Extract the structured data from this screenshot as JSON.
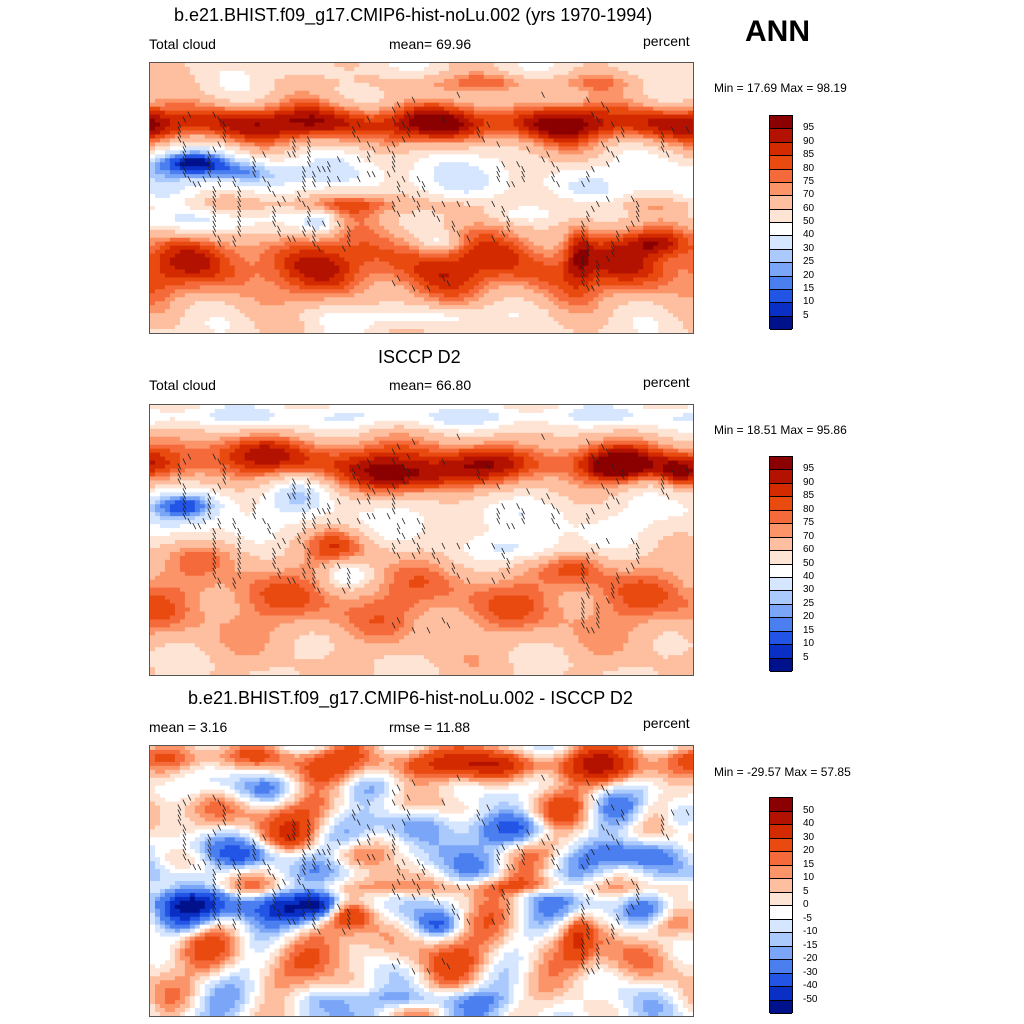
{
  "header": {
    "season": "ANN"
  },
  "panels": [
    {
      "title": "b.e21.BHIST.f09_g17.CMIP6-hist-noLu.002 (yrs 1970-1994)",
      "left_label": "Total cloud",
      "center_label": "mean=  69.96",
      "right_label": "percent",
      "minmax": "Min =  17.69 Max =  98.19",
      "colorbar_labels": [
        "95",
        "90",
        "85",
        "80",
        "75",
        "70",
        "60",
        "50",
        "40",
        "30",
        "25",
        "20",
        "15",
        "10",
        "5"
      ],
      "colorbar_colors": [
        "#8b0000",
        "#b41200",
        "#d42a00",
        "#e84a10",
        "#f56a3a",
        "#fb9468",
        "#fdbf9f",
        "#fde4d4",
        "#ffffff",
        "#d6e6ff",
        "#aac9fc",
        "#7ba6f7",
        "#4b7ff0",
        "#2255e6",
        "#0a2fc4",
        "#00118c"
      ],
      "map_field": "model"
    },
    {
      "title": "ISCCP D2",
      "left_label": "Total cloud",
      "center_label": "mean=  66.80",
      "right_label": "percent",
      "minmax": "Min =  18.51 Max =  95.86",
      "colorbar_labels": [
        "95",
        "90",
        "85",
        "80",
        "75",
        "70",
        "60",
        "50",
        "40",
        "30",
        "25",
        "20",
        "15",
        "10",
        "5"
      ],
      "colorbar_colors": [
        "#8b0000",
        "#b41200",
        "#d42a00",
        "#e84a10",
        "#f56a3a",
        "#fb9468",
        "#fdbf9f",
        "#fde4d4",
        "#ffffff",
        "#d6e6ff",
        "#aac9fc",
        "#7ba6f7",
        "#4b7ff0",
        "#2255e6",
        "#0a2fc4",
        "#00118c"
      ],
      "map_field": "obs"
    },
    {
      "title": "b.e21.BHIST.f09_g17.CMIP6-hist-noLu.002 - ISCCP D2",
      "left_label": "mean =   3.16",
      "center_label": "rmse =  11.88",
      "right_label": "percent",
      "minmax": "Min = -29.57 Max =  57.85",
      "colorbar_labels": [
        "50",
        "40",
        "30",
        "20",
        "15",
        "10",
        "5",
        "0",
        "-5",
        "-10",
        "-15",
        "-20",
        "-30",
        "-40",
        "-50"
      ],
      "colorbar_colors": [
        "#8b0000",
        "#b41200",
        "#d42a00",
        "#e84a10",
        "#f56a3a",
        "#fb9468",
        "#fdbf9f",
        "#fde4d4",
        "#ffffff",
        "#d6e6ff",
        "#aac9fc",
        "#7ba6f7",
        "#4b7ff0",
        "#2255e6",
        "#0a2fc4",
        "#00118c"
      ],
      "map_field": "diff"
    }
  ]
}
